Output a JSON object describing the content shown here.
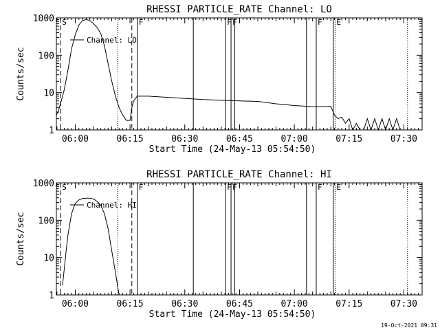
{
  "footer": {
    "timestamp": "19-Oct-2021 09:31"
  },
  "chart_data": [
    {
      "type": "line",
      "title": "RHESSI PARTICLE_RATE Channel: LO",
      "xlabel": "Start Time (24-May-13 05:54:50)",
      "ylabel": "Counts/sec",
      "yscale": "log",
      "ylim": [
        1,
        1000
      ],
      "xlim": [
        "05:54:50",
        "07:35:00"
      ],
      "xticks": [
        "06:00",
        "06:15",
        "06:30",
        "06:45",
        "07:00",
        "07:15",
        "07:30"
      ],
      "yticks": [
        "1",
        "10",
        "100",
        "1000"
      ],
      "legend": {
        "label": "Channel: LO",
        "placement": "top-left"
      },
      "markers": [
        {
          "time": "05:56:00",
          "label": "S",
          "style": "dashed"
        },
        {
          "time": "06:15:30",
          "label": "",
          "style": "dashed"
        },
        {
          "time": "06:11:40",
          "label": "",
          "style": "dotted"
        },
        {
          "time": "06:17:00",
          "label": "F",
          "style": "solid"
        },
        {
          "time": "06:32:20",
          "label": "",
          "style": "solid"
        },
        {
          "time": "06:41:10",
          "label": "F",
          "style": "solid"
        },
        {
          "time": "06:42:40",
          "label": "F",
          "style": "solid"
        },
        {
          "time": "06:43:40",
          "label": "",
          "style": "solid"
        },
        {
          "time": "07:03:20",
          "label": "",
          "style": "solid"
        },
        {
          "time": "07:06:00",
          "label": "F",
          "style": "solid"
        },
        {
          "time": "07:10:40",
          "label": "",
          "style": "solid"
        },
        {
          "time": "07:11:10",
          "label": "E",
          "style": "dotted"
        },
        {
          "time": "07:31:00",
          "label": "",
          "style": "dotted"
        }
      ],
      "series": [
        {
          "x": [
            "05:54:50",
            "05:55:30",
            "05:56:10",
            "05:57:00",
            "05:58:00",
            "05:59:00",
            "06:00:00",
            "06:01:00",
            "06:02:00",
            "06:03:00",
            "06:04:00",
            "06:05:00",
            "06:06:00",
            "06:07:00",
            "06:08:00",
            "06:09:00",
            "06:10:00",
            "06:11:00",
            "06:12:00",
            "06:13:00",
            "06:14:00",
            "06:15:00",
            "06:15:30",
            "06:16:00",
            "06:16:30",
            "06:17:00",
            "06:20:00",
            "06:25:00",
            "06:30:00",
            "06:35:00",
            "06:40:00",
            "06:45:00",
            "06:50:00",
            "06:55:00",
            "07:00:00",
            "07:05:00",
            "07:08:00",
            "07:10:00",
            "07:11:00",
            "07:12:00",
            "07:13:00",
            "07:14:00",
            "07:15:00",
            "07:16:00",
            "07:17:00",
            "07:18:00",
            "07:19:00",
            "07:20:00",
            "07:21:00",
            "07:22:00",
            "07:23:00",
            "07:24:00",
            "07:25:00",
            "07:26:00",
            "07:27:00",
            "07:28:00",
            "07:29:00",
            "07:30:00"
          ],
          "y": [
            2.5,
            3.5,
            6,
            12,
            40,
            150,
            350,
            650,
            850,
            900,
            850,
            700,
            550,
            380,
            180,
            60,
            20,
            8,
            4,
            2.5,
            1.8,
            1.8,
            4,
            6,
            7,
            8,
            8,
            7.5,
            7,
            6.5,
            6.2,
            6,
            5.8,
            5,
            4.5,
            4.2,
            4.2,
            4.3,
            2.5,
            2,
            2.2,
            1.5,
            2,
            1,
            1.5,
            1,
            1,
            2,
            1,
            2,
            1,
            2,
            1,
            2,
            1,
            2,
            1,
            1
          ]
        }
      ]
    },
    {
      "type": "line",
      "title": "RHESSI PARTICLE_RATE Channel: HI",
      "xlabel": "Start Time (24-May-13 05:54:50)",
      "ylabel": "Counts/sec",
      "yscale": "log",
      "ylim": [
        1,
        1000
      ],
      "xlim": [
        "05:54:50",
        "07:35:00"
      ],
      "xticks": [
        "06:00",
        "06:15",
        "06:30",
        "06:45",
        "07:00",
        "07:15",
        "07:30"
      ],
      "yticks": [
        "1",
        "10",
        "100",
        "1000"
      ],
      "legend": {
        "label": "Channel: HI",
        "placement": "top-left"
      },
      "markers": [
        {
          "time": "05:56:00",
          "label": "S",
          "style": "dashed"
        },
        {
          "time": "06:15:30",
          "label": "",
          "style": "dashed"
        },
        {
          "time": "06:11:40",
          "label": "",
          "style": "dotted"
        },
        {
          "time": "06:17:00",
          "label": "F",
          "style": "solid"
        },
        {
          "time": "06:32:20",
          "label": "",
          "style": "solid"
        },
        {
          "time": "06:41:10",
          "label": "F",
          "style": "solid"
        },
        {
          "time": "06:42:40",
          "label": "F",
          "style": "solid"
        },
        {
          "time": "06:43:40",
          "label": "",
          "style": "solid"
        },
        {
          "time": "07:03:20",
          "label": "",
          "style": "solid"
        },
        {
          "time": "07:06:00",
          "label": "F",
          "style": "solid"
        },
        {
          "time": "07:10:40",
          "label": "",
          "style": "solid"
        },
        {
          "time": "07:11:10",
          "label": "E",
          "style": "dotted"
        },
        {
          "time": "07:31:00",
          "label": "",
          "style": "dotted"
        }
      ],
      "series": [
        {
          "x": [
            "05:56:30",
            "05:57:00",
            "05:57:30",
            "05:58:00",
            "05:59:00",
            "06:00:00",
            "06:01:00",
            "06:02:00",
            "06:03:00",
            "06:04:00",
            "06:05:00",
            "06:06:00",
            "06:07:00",
            "06:08:00",
            "06:09:00",
            "06:10:00",
            "06:11:00",
            "06:12:00"
          ],
          "y": [
            1.8,
            5,
            15,
            40,
            150,
            280,
            350,
            380,
            390,
            390,
            370,
            320,
            250,
            150,
            60,
            15,
            4,
            1
          ]
        }
      ]
    }
  ]
}
